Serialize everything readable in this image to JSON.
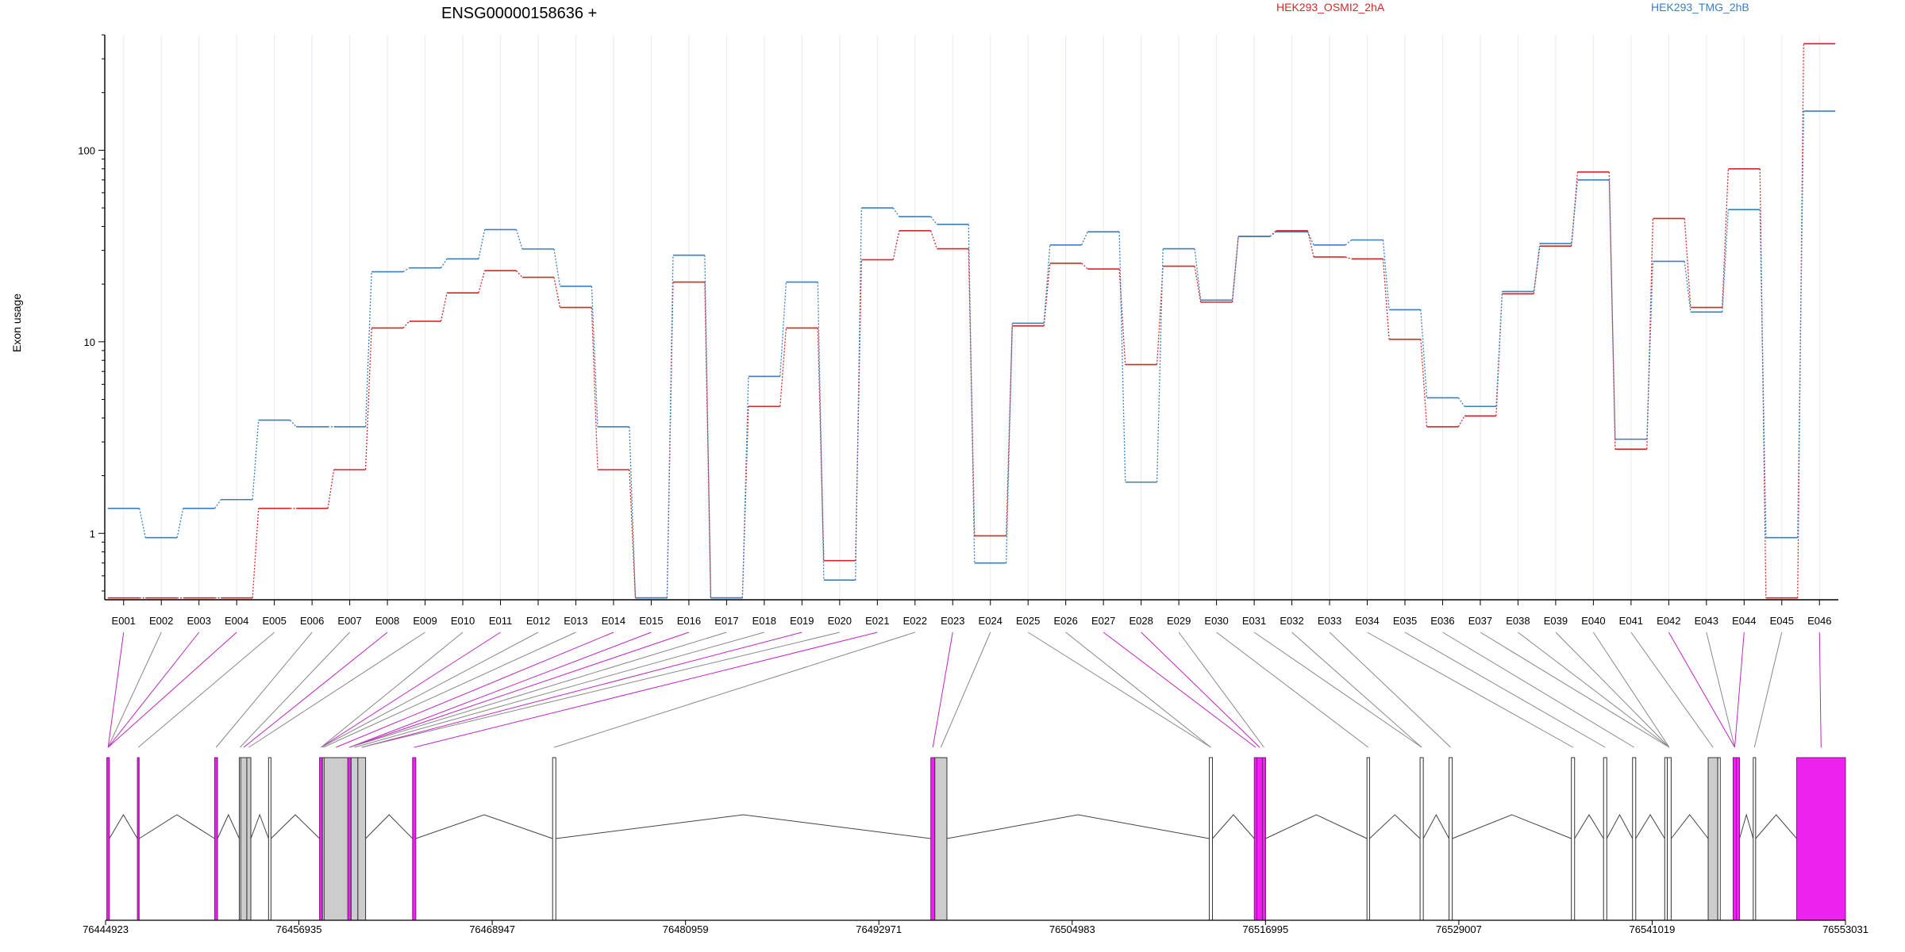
{
  "chart_data": {
    "type": "line",
    "title": "ENSG00000158636 +",
    "ylabel": "Exon usage",
    "yscale": "log",
    "ylim": [
      0.45,
      400
    ],
    "yticks": [
      1,
      10,
      100
    ],
    "grid": "vertical",
    "legend_placement": "top",
    "categories": [
      "E001",
      "E002",
      "E003",
      "E004",
      "E005",
      "E006",
      "E007",
      "E008",
      "E009",
      "E010",
      "E011",
      "E012",
      "E013",
      "E014",
      "E015",
      "E016",
      "E017",
      "E018",
      "E019",
      "E020",
      "E021",
      "E022",
      "E023",
      "E024",
      "E025",
      "E026",
      "E027",
      "E028",
      "E029",
      "E030",
      "E031",
      "E032",
      "E033",
      "E034",
      "E035",
      "E036",
      "E037",
      "E038",
      "E039",
      "E040",
      "E041",
      "E042",
      "E043",
      "E044",
      "E045",
      "E046"
    ],
    "series": [
      {
        "name": "HEK293_OSMI2_2hA",
        "color": "#d62728",
        "values": [
          0.46,
          0.46,
          0.46,
          0.46,
          1.35,
          1.35,
          2.15,
          11.8,
          12.8,
          18.0,
          23.5,
          21.7,
          15.1,
          2.15,
          0.46,
          20.5,
          0.46,
          4.6,
          11.8,
          0.72,
          26.8,
          38.0,
          30.6,
          0.97,
          12.1,
          25.7,
          24.0,
          7.6,
          24.8,
          16.1,
          35.5,
          38.0,
          27.7,
          27.1,
          10.3,
          3.6,
          4.1,
          17.8,
          31.6,
          77.0,
          2.75,
          44.0,
          15.1,
          80.0,
          0.46,
          360.0
        ]
      },
      {
        "name": "HEK293_TMG_2hB",
        "color": "#3a7fc4",
        "values": [
          1.35,
          0.95,
          1.35,
          1.5,
          3.9,
          3.6,
          3.6,
          23.2,
          24.3,
          27.1,
          38.5,
          30.5,
          19.5,
          3.6,
          0.46,
          28.3,
          0.46,
          6.6,
          20.5,
          0.57,
          50.0,
          45.0,
          41.0,
          0.7,
          12.5,
          32.0,
          37.5,
          1.85,
          30.6,
          16.5,
          35.5,
          37.5,
          32.0,
          34.0,
          14.7,
          5.1,
          4.6,
          18.3,
          32.6,
          70.0,
          3.1,
          26.3,
          14.3,
          49.0,
          0.95,
          160.0
        ]
      }
    ],
    "gene_model": {
      "coordinate_ticks": [
        "76444923",
        "76456935",
        "76468947",
        "76480959",
        "76492971",
        "76504983",
        "76516995",
        "76529007",
        "76541019",
        "76553031"
      ],
      "xlim": [
        76444923,
        76553031
      ],
      "highlight_color": "#ee22ee",
      "exon_color": "#cccccc",
      "exons": [
        {
          "id": "E001",
          "start": 76445000,
          "end": 76445160,
          "highlight": true
        },
        {
          "id": "E002",
          "start": 76446900,
          "end": 76447010,
          "highlight": true
        },
        {
          "id": "E003",
          "start": 76451700,
          "end": 76451880,
          "highlight": true
        },
        {
          "id": "E004",
          "start": 76453230,
          "end": 76453320,
          "highlight": false
        },
        {
          "id": "E005",
          "start": 76453320,
          "end": 76453700,
          "highlight": false
        },
        {
          "id": "E006",
          "start": 76453700,
          "end": 76453950,
          "highlight": false
        },
        {
          "id": "E007",
          "start": 76455050,
          "end": 76455200,
          "highlight": false
        },
        {
          "id": "E008",
          "start": 76458220,
          "end": 76458400,
          "highlight": true
        },
        {
          "id": "E009",
          "start": 76458400,
          "end": 76458500,
          "highlight": false
        },
        {
          "id": "E010",
          "start": 76458500,
          "end": 76459980,
          "highlight": false
        },
        {
          "id": "E011",
          "start": 76459980,
          "end": 76460180,
          "highlight": true
        },
        {
          "id": "E012",
          "start": 76460180,
          "end": 76460600,
          "highlight": false
        },
        {
          "id": "E013",
          "start": 76460600,
          "end": 76461080,
          "highlight": false
        },
        {
          "id": "E014",
          "start": 76464000,
          "end": 76464200,
          "highlight": true
        },
        {
          "id": "E015",
          "start": 76472700,
          "end": 76472900,
          "highlight": false
        },
        {
          "id": "E016",
          "start": 76496200,
          "end": 76496450,
          "highlight": true
        },
        {
          "id": "E017",
          "start": 76496450,
          "end": 76497200,
          "highlight": false
        },
        {
          "id": "E018",
          "start": 76513500,
          "end": 76513700,
          "highlight": false
        },
        {
          "id": "E019",
          "start": 76516300,
          "end": 76516460,
          "highlight": true
        },
        {
          "id": "E020",
          "start": 76516460,
          "end": 76516800,
          "highlight": true
        },
        {
          "id": "E021",
          "start": 76516800,
          "end": 76517000,
          "highlight": true
        },
        {
          "id": "E022",
          "start": 76523300,
          "end": 76523460,
          "highlight": false
        },
        {
          "id": "E023",
          "start": 76526600,
          "end": 76526800,
          "highlight": false
        },
        {
          "id": "E024",
          "start": 76528400,
          "end": 76528600,
          "highlight": false
        },
        {
          "id": "E025",
          "start": 76536000,
          "end": 76536200,
          "highlight": false
        },
        {
          "id": "E026",
          "start": 76538000,
          "end": 76538200,
          "highlight": false
        },
        {
          "id": "E027",
          "start": 76539800,
          "end": 76540000,
          "highlight": false
        },
        {
          "id": "E028",
          "start": 76541800,
          "end": 76541960,
          "highlight": false
        },
        {
          "id": "E029",
          "start": 76541960,
          "end": 76542200,
          "highlight": false
        },
        {
          "id": "E030",
          "start": 76544500,
          "end": 76545100,
          "highlight": false
        },
        {
          "id": "E031",
          "start": 76545100,
          "end": 76545250,
          "highlight": false
        },
        {
          "id": "E032",
          "start": 76546050,
          "end": 76546250,
          "highlight": true
        },
        {
          "id": "E033",
          "start": 76546250,
          "end": 76546450,
          "highlight": true
        },
        {
          "id": "E034",
          "start": 76547300,
          "end": 76547450,
          "highlight": false
        },
        {
          "id": "E035",
          "start": 76550000,
          "end": 76553031,
          "highlight": true
        }
      ],
      "introns": [
        [
          76445160,
          76446900
        ],
        [
          76447010,
          76451700
        ],
        [
          76451880,
          76453230
        ],
        [
          76453950,
          76455050
        ],
        [
          76455200,
          76458220
        ],
        [
          76461080,
          76464000
        ],
        [
          76464200,
          76472700
        ],
        [
          76472900,
          76496200
        ],
        [
          76497200,
          76513500
        ],
        [
          76513700,
          76516300
        ],
        [
          76517000,
          76523300
        ],
        [
          76523460,
          76526600
        ],
        [
          76526800,
          76528400
        ],
        [
          76528600,
          76536000
        ],
        [
          76536200,
          76538000
        ],
        [
          76538200,
          76539800
        ],
        [
          76540000,
          76541800
        ],
        [
          76542200,
          76544500
        ],
        [
          76546450,
          76547300
        ],
        [
          76547450,
          76550000
        ]
      ],
      "connectors": [
        {
          "label": "E001",
          "exon": "E001",
          "highlight": true
        },
        {
          "label": "E002",
          "exon": "E001",
          "highlight": false
        },
        {
          "label": "E003",
          "exon": "E001",
          "highlight": true
        },
        {
          "label": "E004",
          "exon": "E001",
          "highlight": true
        },
        {
          "label": "E005",
          "exon": "E002",
          "highlight": false
        },
        {
          "label": "E006",
          "exon": "E003",
          "highlight": false
        },
        {
          "label": "E007",
          "exon": "E004",
          "highlight": false
        },
        {
          "label": "E008",
          "exon": "E005",
          "highlight": true
        },
        {
          "label": "E009",
          "exon": "E006",
          "highlight": false
        },
        {
          "label": "E010",
          "exon": "E008",
          "highlight": false
        },
        {
          "label": "E011",
          "exon": "E008",
          "highlight": true
        },
        {
          "label": "E012",
          "exon": "E008",
          "highlight": false
        },
        {
          "label": "E013",
          "exon": "E009",
          "highlight": false
        },
        {
          "label": "E014",
          "exon": "E010",
          "highlight": true
        },
        {
          "label": "E015",
          "exon": "E011",
          "highlight": true
        },
        {
          "label": "E016",
          "exon": "E011",
          "highlight": true
        },
        {
          "label": "E017",
          "exon": "E011",
          "highlight": false
        },
        {
          "label": "E018",
          "exon": "E012",
          "highlight": false
        },
        {
          "label": "E019",
          "exon": "E013",
          "highlight": true
        },
        {
          "label": "E020",
          "exon": "E013",
          "highlight": false
        },
        {
          "label": "E021",
          "exon": "E014",
          "highlight": true
        },
        {
          "label": "E022",
          "exon": "E015",
          "highlight": false
        },
        {
          "label": "E023",
          "exon": "E016",
          "highlight": true
        },
        {
          "label": "E024",
          "exon": "E017",
          "highlight": false
        },
        {
          "label": "E025",
          "exon": "E018",
          "highlight": false
        },
        {
          "label": "E026",
          "exon": "E018",
          "highlight": false
        },
        {
          "label": "E027",
          "exon": "E019",
          "highlight": true
        },
        {
          "label": "E028",
          "exon": "E020",
          "highlight": true
        },
        {
          "label": "E029",
          "exon": "E021",
          "highlight": false
        },
        {
          "label": "E030",
          "exon": "E022",
          "highlight": false
        },
        {
          "label": "E031",
          "exon": "E023",
          "highlight": false
        },
        {
          "label": "E032",
          "exon": "E023",
          "highlight": false
        },
        {
          "label": "E033",
          "exon": "E024",
          "highlight": false
        },
        {
          "label": "E034",
          "exon": "E025",
          "highlight": false
        },
        {
          "label": "E035",
          "exon": "E026",
          "highlight": false
        },
        {
          "label": "E036",
          "exon": "E027",
          "highlight": false
        },
        {
          "label": "E037",
          "exon": "E029",
          "highlight": false
        },
        {
          "label": "E038",
          "exon": "E029",
          "highlight": false
        },
        {
          "label": "E039",
          "exon": "E029",
          "highlight": false
        },
        {
          "label": "E040",
          "exon": "E029",
          "highlight": false
        },
        {
          "label": "E041",
          "exon": "E030",
          "highlight": false
        },
        {
          "label": "E042",
          "exon": "E032",
          "highlight": true
        },
        {
          "label": "E043",
          "exon": "E032",
          "highlight": false
        },
        {
          "label": "E044",
          "exon": "E032",
          "highlight": true
        },
        {
          "label": "E045",
          "exon": "E034",
          "highlight": false
        },
        {
          "label": "E046",
          "exon": "E035",
          "highlight": true
        }
      ]
    }
  }
}
